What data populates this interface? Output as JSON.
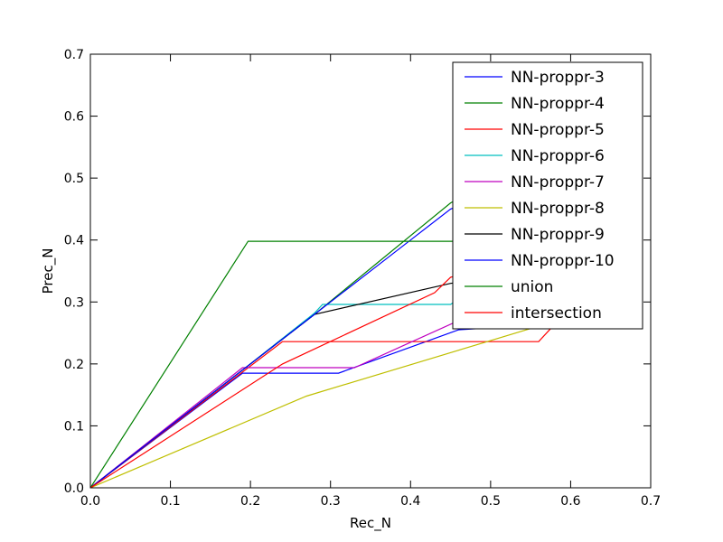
{
  "chart_data": {
    "type": "line",
    "title": "",
    "xlabel": "Rec_N",
    "ylabel": "Prec_N",
    "xlim": [
      0.0,
      0.7
    ],
    "ylim": [
      0.0,
      0.7
    ],
    "x_ticks": [
      "0.0",
      "0.1",
      "0.2",
      "0.3",
      "0.4",
      "0.5",
      "0.6",
      "0.7"
    ],
    "y_ticks": [
      "0.0",
      "0.1",
      "0.2",
      "0.3",
      "0.4",
      "0.5",
      "0.6",
      "0.7"
    ],
    "grid": false,
    "legend_position": "top-right",
    "series": [
      {
        "name": "NN-proppr-3",
        "color": "#0000ff",
        "points": [
          [
            0,
            0
          ],
          [
            0.19,
            0.185
          ],
          [
            0.31,
            0.185
          ],
          [
            0.46,
            0.255
          ],
          [
            0.65,
            0.27
          ]
        ]
      },
      {
        "name": "NN-proppr-4",
        "color": "#008000",
        "points": [
          [
            0,
            0
          ],
          [
            0.19,
            0.19
          ],
          [
            0.28,
            0.28
          ],
          [
            0.45,
            0.46
          ],
          [
            0.51,
            0.5
          ]
        ]
      },
      {
        "name": "NN-proppr-5",
        "color": "#ff0000",
        "points": [
          [
            0,
            0
          ],
          [
            0.24,
            0.236
          ],
          [
            0.56,
            0.236
          ],
          [
            0.62,
            0.32
          ]
        ]
      },
      {
        "name": "NN-proppr-6",
        "color": "#00bfbf",
        "points": [
          [
            0,
            0
          ],
          [
            0.19,
            0.19
          ],
          [
            0.28,
            0.282
          ],
          [
            0.29,
            0.296
          ],
          [
            0.45,
            0.296
          ],
          [
            0.51,
            0.35
          ]
        ]
      },
      {
        "name": "NN-proppr-7",
        "color": "#bf00bf",
        "points": [
          [
            0,
            0
          ],
          [
            0.19,
            0.194
          ],
          [
            0.33,
            0.194
          ],
          [
            0.46,
            0.27
          ],
          [
            0.6,
            0.29
          ]
        ]
      },
      {
        "name": "NN-proppr-8",
        "color": "#bfbf00",
        "points": [
          [
            0,
            0
          ],
          [
            0.27,
            0.148
          ],
          [
            0.57,
            0.265
          ],
          [
            0.6,
            0.28
          ]
        ]
      },
      {
        "name": "NN-proppr-9",
        "color": "#000000",
        "points": [
          [
            0,
            0
          ],
          [
            0.19,
            0.19
          ],
          [
            0.28,
            0.28
          ],
          [
            0.45,
            0.33
          ],
          [
            0.51,
            0.34
          ]
        ]
      },
      {
        "name": "NN-proppr-10",
        "color": "#0000ff",
        "points": [
          [
            0,
            0
          ],
          [
            0.19,
            0.19
          ],
          [
            0.28,
            0.28
          ],
          [
            0.4,
            0.4
          ],
          [
            0.45,
            0.45
          ],
          [
            0.51,
            0.48
          ]
        ]
      },
      {
        "name": "union",
        "color": "#008000",
        "points": [
          [
            0,
            0
          ],
          [
            0.197,
            0.398
          ],
          [
            0.52,
            0.398
          ]
        ]
      },
      {
        "name": "intersection",
        "color": "#ff0000",
        "points": [
          [
            0,
            0
          ],
          [
            0.24,
            0.2
          ],
          [
            0.43,
            0.315
          ],
          [
            0.45,
            0.34
          ],
          [
            0.51,
            0.36
          ]
        ]
      }
    ]
  }
}
